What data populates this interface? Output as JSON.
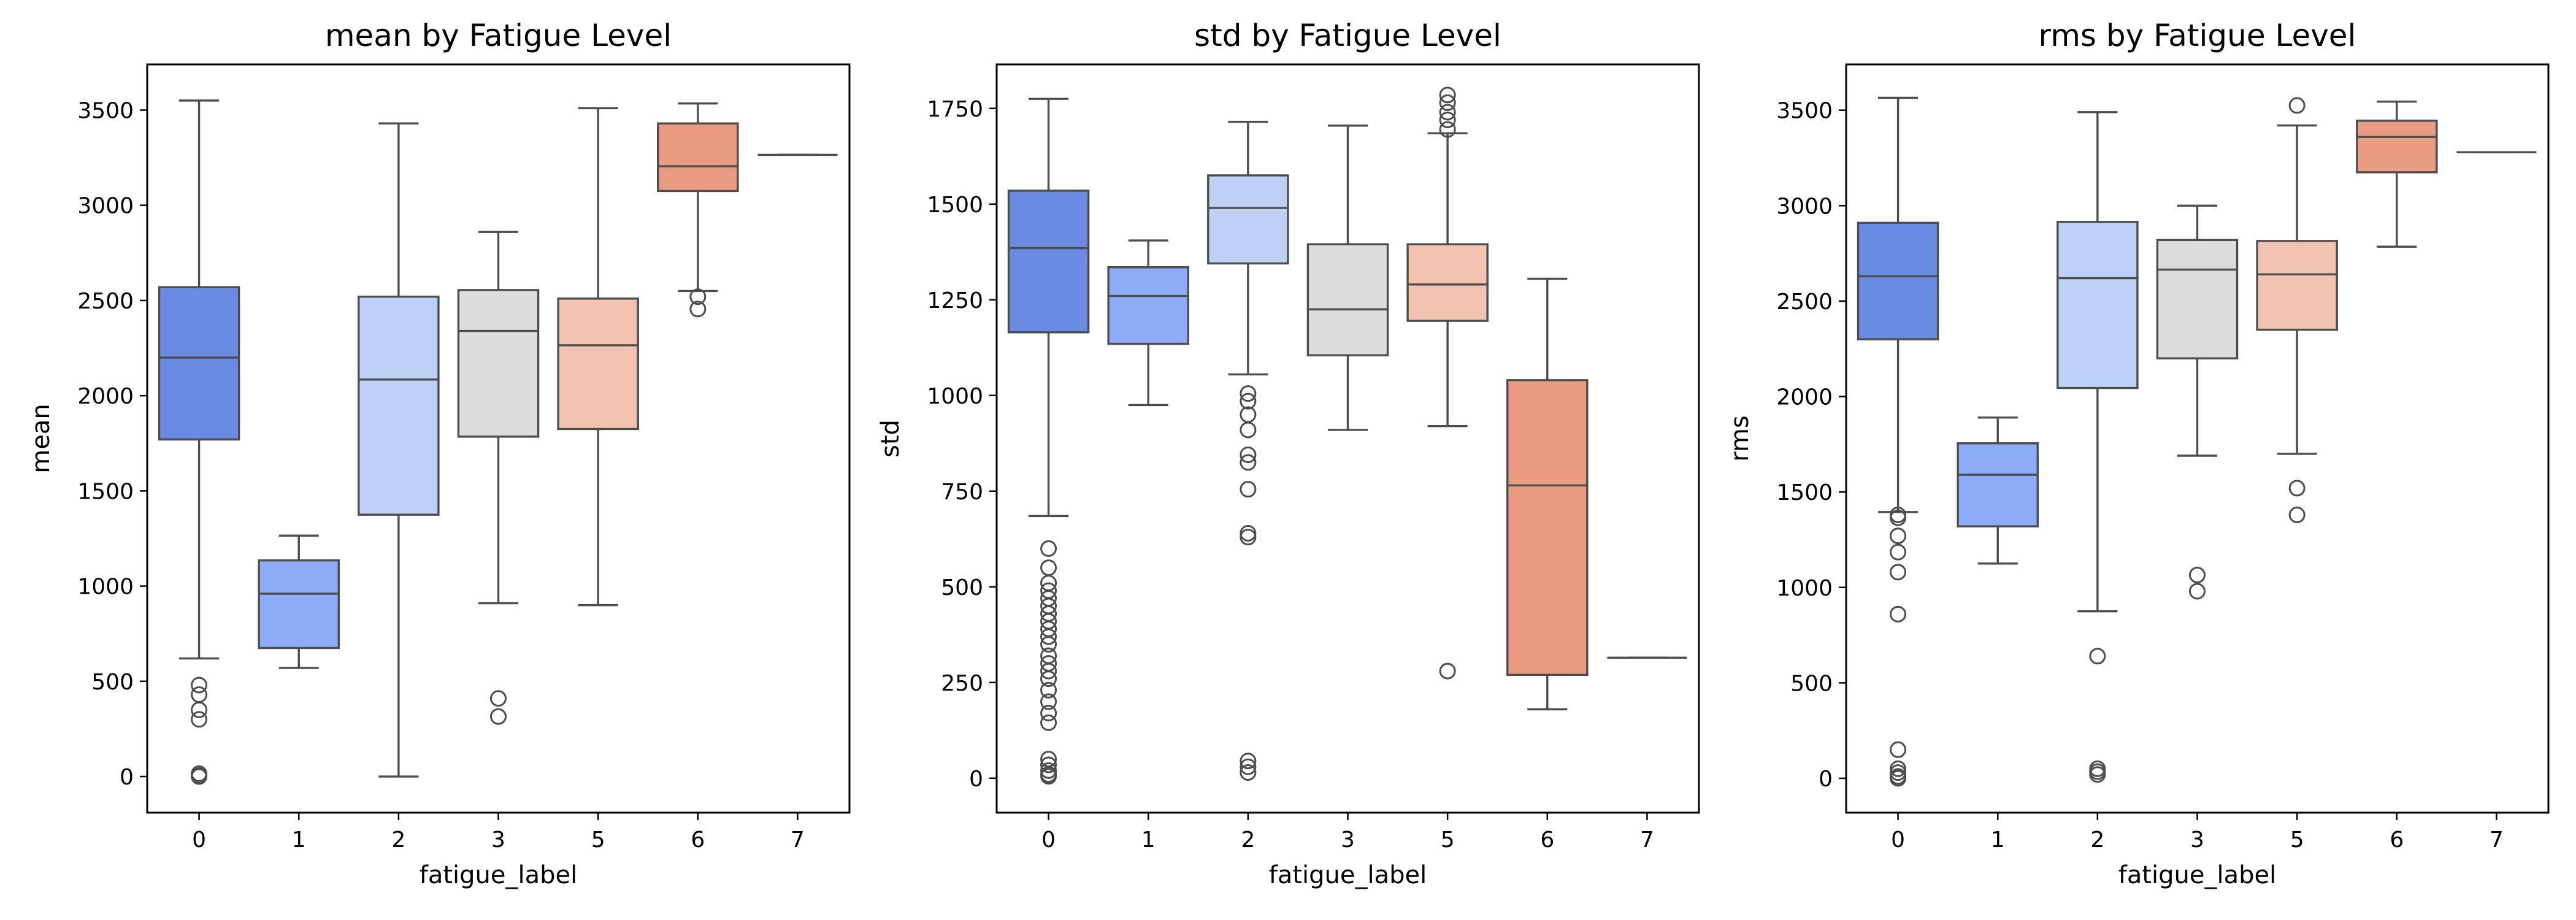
{
  "chart_data": [
    {
      "type": "box",
      "title": "mean by Fatigue Level",
      "xlabel": "fatigue_label",
      "ylabel": "mean",
      "ylim": [
        -190,
        3740
      ],
      "yticks": [
        0,
        500,
        1000,
        1500,
        2000,
        2500,
        3000,
        3500
      ],
      "grid": false,
      "categories": [
        "0",
        "1",
        "2",
        "3",
        "5",
        "6",
        "7"
      ],
      "boxes": [
        {
          "category": "0",
          "whislo": 620,
          "q1": 1770,
          "med": 2200,
          "q3": 2570,
          "whishi": 3550,
          "fliers": [
            480,
            430,
            350,
            300,
            15,
            5,
            0
          ]
        },
        {
          "category": "1",
          "whislo": 570,
          "q1": 675,
          "med": 960,
          "q3": 1135,
          "whishi": 1265,
          "fliers": []
        },
        {
          "category": "2",
          "whislo": 0,
          "q1": 1375,
          "med": 2085,
          "q3": 2520,
          "whishi": 3430,
          "fliers": []
        },
        {
          "category": "3",
          "whislo": 910,
          "q1": 1785,
          "med": 2340,
          "q3": 2555,
          "whishi": 2860,
          "fliers": [
            410,
            315
          ]
        },
        {
          "category": "5",
          "whislo": 900,
          "q1": 1825,
          "med": 2265,
          "q3": 2510,
          "whishi": 3510,
          "fliers": []
        },
        {
          "category": "6",
          "whislo": 2550,
          "q1": 3075,
          "med": 3205,
          "q3": 3430,
          "whishi": 3535,
          "fliers": [
            2520,
            2455
          ]
        },
        {
          "category": "7",
          "whislo": 3265,
          "q1": 3265,
          "med": 3265,
          "q3": 3265,
          "whishi": 3265,
          "fliers": []
        }
      ]
    },
    {
      "type": "box",
      "title": "std by Fatigue Level",
      "xlabel": "fatigue_label",
      "ylabel": "std",
      "ylim": [
        -90,
        1865
      ],
      "yticks": [
        0,
        250,
        500,
        750,
        1000,
        1250,
        1500,
        1750
      ],
      "grid": false,
      "categories": [
        "0",
        "1",
        "2",
        "3",
        "5",
        "6",
        "7"
      ],
      "boxes": [
        {
          "category": "0",
          "whislo": 685,
          "q1": 1165,
          "med": 1385,
          "q3": 1535,
          "whishi": 1775,
          "fliers": [
            600,
            550,
            510,
            490,
            470,
            450,
            430,
            410,
            390,
            370,
            350,
            320,
            300,
            280,
            260,
            230,
            200,
            170,
            145,
            50,
            35,
            20,
            10,
            5
          ]
        },
        {
          "category": "1",
          "whislo": 975,
          "q1": 1135,
          "med": 1260,
          "q3": 1335,
          "whishi": 1405,
          "fliers": []
        },
        {
          "category": "2",
          "whislo": 1055,
          "q1": 1345,
          "med": 1490,
          "q3": 1575,
          "whishi": 1715,
          "fliers": [
            1005,
            985,
            950,
            910,
            845,
            825,
            755,
            640,
            630,
            45,
            30,
            15
          ]
        },
        {
          "category": "3",
          "whislo": 910,
          "q1": 1105,
          "med": 1225,
          "q3": 1395,
          "whishi": 1705,
          "fliers": []
        },
        {
          "category": "5",
          "whislo": 920,
          "q1": 1195,
          "med": 1290,
          "q3": 1395,
          "whishi": 1685,
          "fliers": [
            1785,
            1765,
            1740,
            1720,
            1695,
            280
          ]
        },
        {
          "category": "6",
          "whislo": 180,
          "q1": 270,
          "med": 765,
          "q3": 1040,
          "whishi": 1305,
          "fliers": []
        },
        {
          "category": "7",
          "whislo": 315,
          "q1": 315,
          "med": 315,
          "q3": 315,
          "whishi": 315,
          "fliers": []
        }
      ]
    },
    {
      "type": "box",
      "title": "rms by Fatigue Level",
      "xlabel": "fatigue_label",
      "ylabel": "rms",
      "ylim": [
        -180,
        3740
      ],
      "yticks": [
        0,
        500,
        1000,
        1500,
        2000,
        2500,
        3000,
        3500
      ],
      "grid": false,
      "categories": [
        "0",
        "1",
        "2",
        "3",
        "5",
        "6",
        "7"
      ],
      "boxes": [
        {
          "category": "0",
          "whislo": 1395,
          "q1": 2300,
          "med": 2630,
          "q3": 2910,
          "whishi": 3565,
          "fliers": [
            1380,
            1365,
            1270,
            1185,
            1080,
            860,
            150,
            50,
            30,
            10,
            0
          ]
        },
        {
          "category": "1",
          "whislo": 1125,
          "q1": 1320,
          "med": 1590,
          "q3": 1755,
          "whishi": 1890,
          "fliers": []
        },
        {
          "category": "2",
          "whislo": 875,
          "q1": 2045,
          "med": 2620,
          "q3": 2915,
          "whishi": 3490,
          "fliers": [
            640,
            50,
            35,
            20
          ]
        },
        {
          "category": "3",
          "whislo": 1690,
          "q1": 2200,
          "med": 2665,
          "q3": 2820,
          "whishi": 3000,
          "fliers": [
            1065,
            980
          ]
        },
        {
          "category": "5",
          "whislo": 1700,
          "q1": 2350,
          "med": 2640,
          "q3": 2815,
          "whishi": 3420,
          "fliers": [
            3525,
            1520,
            1380
          ]
        },
        {
          "category": "6",
          "whislo": 2785,
          "q1": 3175,
          "med": 3360,
          "q3": 3445,
          "whishi": 3545,
          "fliers": []
        },
        {
          "category": "7",
          "whislo": 3280,
          "q1": 3280,
          "med": 3280,
          "q3": 3280,
          "whishi": 3280,
          "fliers": []
        }
      ]
    }
  ],
  "palette": [
    "#6a8be2",
    "#8cacf8",
    "#bdd0f5",
    "#dddddd",
    "#f2c3b0",
    "#e99c82",
    "#ce5a47"
  ],
  "line_color": "#4d4d4d"
}
